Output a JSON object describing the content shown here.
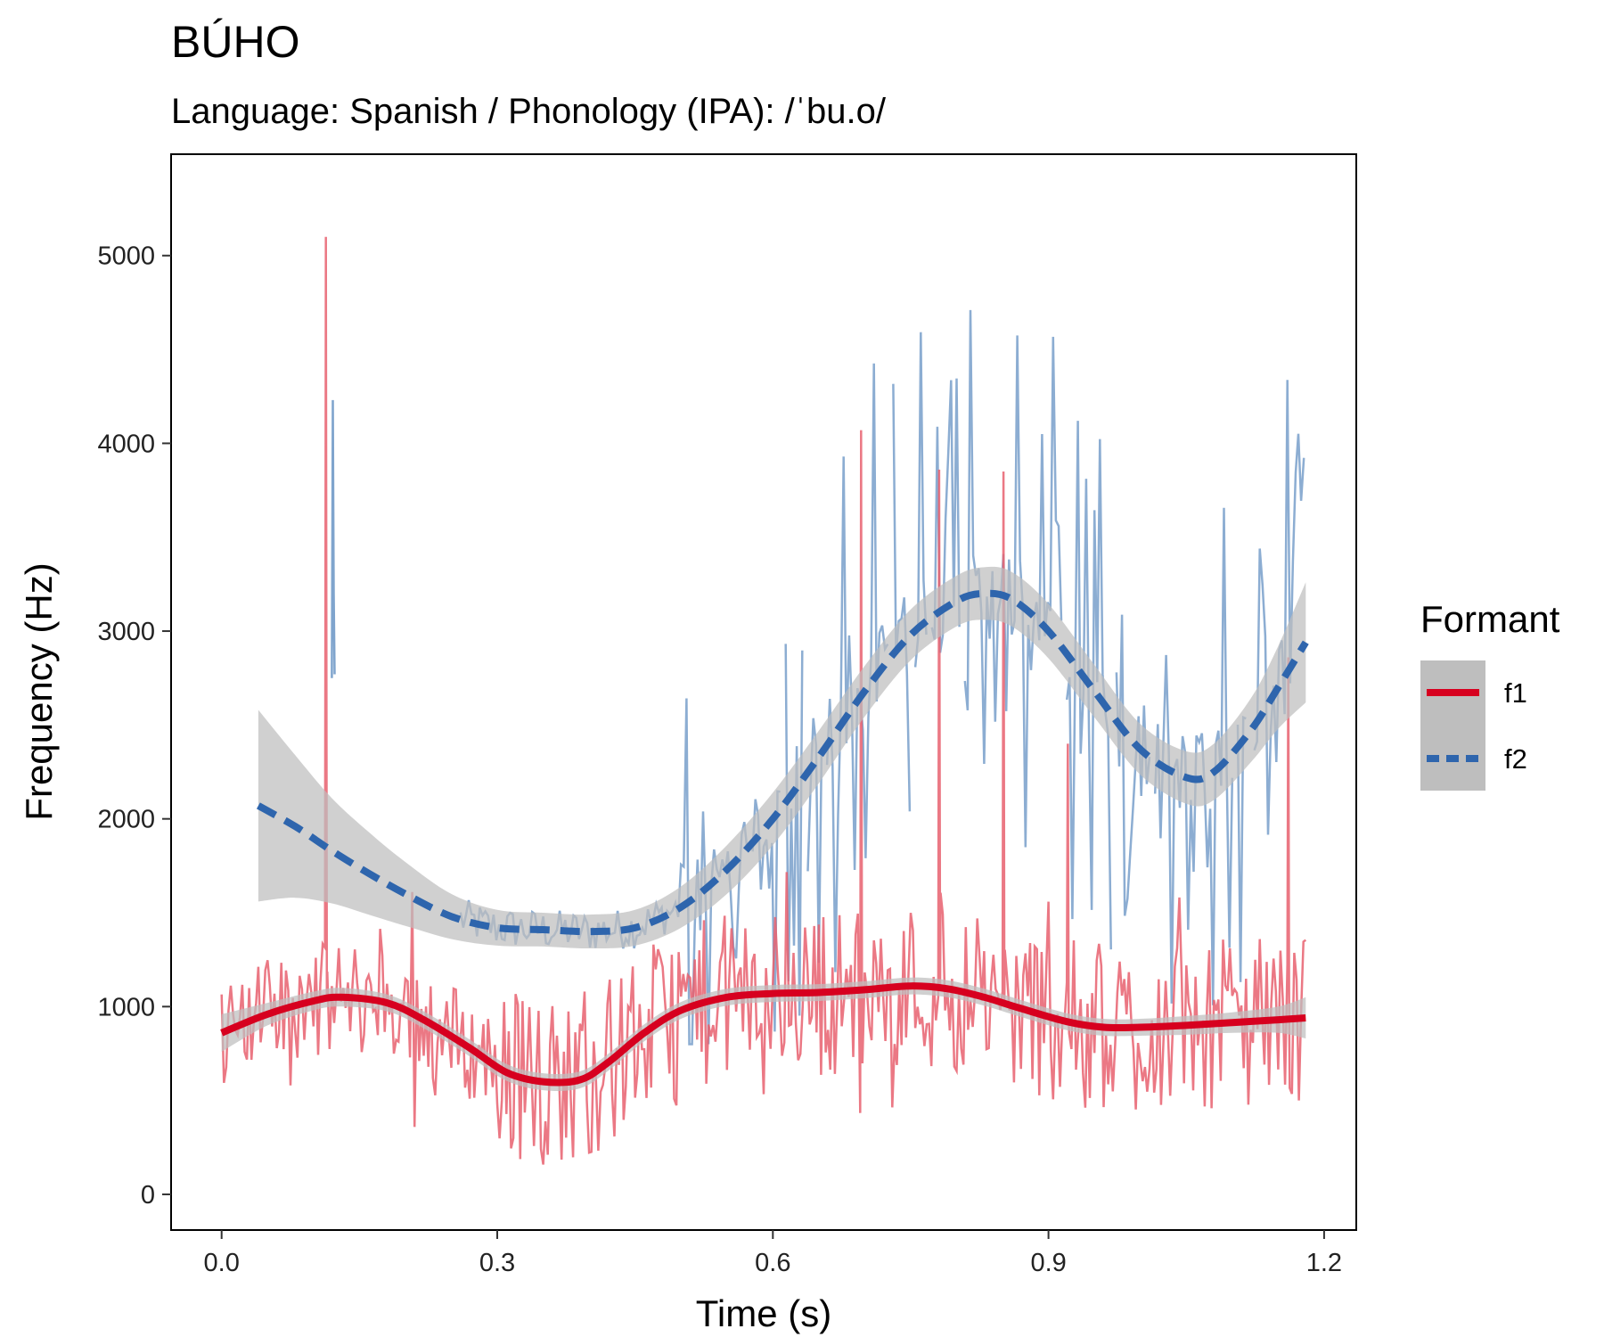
{
  "chart_data": {
    "type": "line",
    "title": "BÚHO",
    "subtitle": "Language: Spanish / Phonology (IPA): /ˈbu.o/",
    "xlabel": "Time (s)",
    "ylabel": "Frequency (Hz)",
    "xlim": [
      -0.055,
      1.235
    ],
    "ylim": [
      -190,
      5540
    ],
    "x_ticks": [
      0.0,
      0.3,
      0.6,
      0.9,
      1.2
    ],
    "x_tick_labels": [
      "0.0",
      "0.3",
      "0.6",
      "0.9",
      "1.2"
    ],
    "y_ticks": [
      0,
      1000,
      2000,
      3000,
      4000,
      5000
    ],
    "y_tick_labels": [
      "0",
      "1000",
      "2000",
      "3000",
      "4000",
      "5000"
    ],
    "grid": false,
    "legend": {
      "title": "Formant",
      "position": "right",
      "entries": [
        {
          "label": "f1",
          "color": "#d7001f",
          "dash": "solid"
        },
        {
          "label": "f2",
          "color": "#2e65ad",
          "dash": "dashed"
        }
      ]
    },
    "colors": {
      "f1_raw": "#e8606f",
      "f2_raw": "#7fa4cd",
      "f1_smooth": "#d7001f",
      "f2_smooth": "#2e65ad",
      "ribbon": "#bebebe"
    },
    "series": [
      {
        "name": "f1",
        "kind": "smooth",
        "x": [
          0.0,
          0.05,
          0.1,
          0.13,
          0.18,
          0.22,
          0.27,
          0.31,
          0.35,
          0.39,
          0.42,
          0.46,
          0.5,
          0.55,
          0.6,
          0.65,
          0.7,
          0.75,
          0.79,
          0.83,
          0.87,
          0.92,
          0.96,
          1.0,
          1.05,
          1.1,
          1.15,
          1.18
        ],
        "y": [
          860,
          960,
          1030,
          1050,
          1020,
          930,
          780,
          650,
          600,
          610,
          700,
          860,
          980,
          1050,
          1070,
          1075,
          1090,
          1110,
          1095,
          1050,
          990,
          920,
          890,
          890,
          900,
          915,
          930,
          940
        ],
        "ci_halfwidth": [
          100,
          60,
          50,
          50,
          45,
          45,
          45,
          45,
          45,
          45,
          45,
          45,
          45,
          45,
          45,
          45,
          45,
          45,
          45,
          45,
          45,
          45,
          45,
          45,
          50,
          55,
          70,
          110
        ]
      },
      {
        "name": "f2",
        "kind": "smooth",
        "x": [
          0.04,
          0.08,
          0.12,
          0.16,
          0.2,
          0.25,
          0.3,
          0.35,
          0.4,
          0.45,
          0.5,
          0.55,
          0.6,
          0.65,
          0.7,
          0.75,
          0.8,
          0.83,
          0.86,
          0.9,
          0.95,
          1.0,
          1.05,
          1.08,
          1.12,
          1.15,
          1.18
        ],
        "y": [
          2070,
          1960,
          1830,
          1710,
          1600,
          1480,
          1420,
          1410,
          1400,
          1420,
          1530,
          1730,
          2000,
          2330,
          2680,
          2980,
          3160,
          3200,
          3170,
          3000,
          2680,
          2370,
          2220,
          2250,
          2470,
          2700,
          2940
        ],
        "ci_halfwidth": [
          510,
          380,
          280,
          220,
          170,
          120,
          95,
          90,
          90,
          95,
          110,
          130,
          140,
          140,
          135,
          135,
          135,
          140,
          145,
          145,
          140,
          135,
          140,
          150,
          170,
          220,
          320
        ]
      }
    ]
  }
}
